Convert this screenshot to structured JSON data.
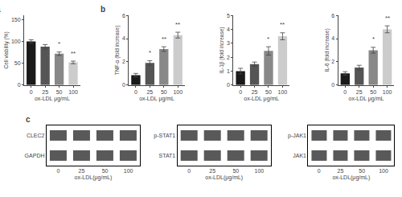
{
  "chart_data": [
    {
      "type": "bar",
      "title": "a",
      "categories": [
        "0",
        "25",
        "50",
        "100"
      ],
      "values": [
        100,
        88,
        72,
        52
      ],
      "errors": [
        4,
        5,
        4,
        3
      ],
      "colors": [
        "#1a1a1a",
        "#555555",
        "#888888",
        "#cccccc"
      ],
      "xlabel": "ox-LDL μg/mL",
      "ylabel": "Cell viability (%)",
      "ylim": [
        0,
        160
      ],
      "yticks": [
        0,
        50,
        100,
        150
      ],
      "grid": false,
      "annotations": [
        {
          "category": "50",
          "text": "*"
        },
        {
          "category": "100",
          "text": "**"
        }
      ]
    },
    {
      "type": "bar",
      "title": "b",
      "categories": [
        "0",
        "25",
        "50",
        "100"
      ],
      "values": [
        0.85,
        1.9,
        3.1,
        4.3
      ],
      "errors": [
        0.15,
        0.2,
        0.2,
        0.25
      ],
      "colors": [
        "#1a1a1a",
        "#555555",
        "#888888",
        "#cccccc"
      ],
      "xlabel": "ox-LDL μg/mL",
      "ylabel": "TNF-α (fold increase)",
      "ylim": [
        0,
        6
      ],
      "yticks": [
        0,
        2,
        4,
        6
      ],
      "grid": false,
      "annotations": [
        {
          "category": "25",
          "text": "*"
        },
        {
          "category": "50",
          "text": "**"
        },
        {
          "category": "100",
          "text": "**"
        }
      ]
    },
    {
      "type": "bar",
      "categories": [
        "0",
        "25",
        "50",
        "100"
      ],
      "values": [
        1.0,
        1.5,
        2.45,
        3.5
      ],
      "errors": [
        0.2,
        0.15,
        0.3,
        0.25
      ],
      "colors": [
        "#1a1a1a",
        "#555555",
        "#888888",
        "#cccccc"
      ],
      "xlabel": "ox-LDL μg/mL",
      "ylabel": "IL-1β (fold increase)",
      "ylim": [
        0,
        5
      ],
      "yticks": [
        0,
        1,
        2,
        3,
        4,
        5
      ],
      "grid": false,
      "annotations": [
        {
          "category": "50",
          "text": "*"
        },
        {
          "category": "100",
          "text": "**"
        }
      ]
    },
    {
      "type": "bar",
      "categories": [
        "0",
        "25",
        "50",
        "100"
      ],
      "values": [
        1.0,
        1.5,
        3.0,
        4.8
      ],
      "errors": [
        0.15,
        0.2,
        0.25,
        0.3
      ],
      "colors": [
        "#1a1a1a",
        "#555555",
        "#888888",
        "#cccccc"
      ],
      "xlabel": "ox-LDL μg/mL",
      "ylabel": "IL-6 (fold increase)",
      "ylim": [
        0,
        6
      ],
      "yticks": [
        0,
        2,
        4,
        6
      ],
      "grid": false,
      "annotations": [
        {
          "category": "50",
          "text": "*"
        },
        {
          "category": "100",
          "text": "**"
        }
      ]
    },
    {
      "type": "blot",
      "title": "c",
      "categories": [
        "0",
        "25",
        "50",
        "100"
      ],
      "xlabel": "ox-LDL(μg/mL)",
      "series": [
        {
          "name": "CLEC2"
        },
        {
          "name": "GAPDH"
        }
      ],
      "color": "#222222",
      "grid": false
    },
    {
      "type": "blot",
      "categories": [
        "0",
        "25",
        "50",
        "100"
      ],
      "xlabel": "ox-LDL(μg/mL)",
      "series": [
        {
          "name": "p-STAT1"
        },
        {
          "name": "STAT1"
        }
      ],
      "color": "#222222",
      "grid": false
    },
    {
      "type": "blot",
      "categories": [
        "0",
        "25",
        "50",
        "100"
      ],
      "xlabel": "ox-LDL(μg/mL)",
      "series": [
        {
          "name": "p-JAK1"
        },
        {
          "name": "JAK1"
        }
      ],
      "color": "#222222",
      "grid": false
    }
  ]
}
